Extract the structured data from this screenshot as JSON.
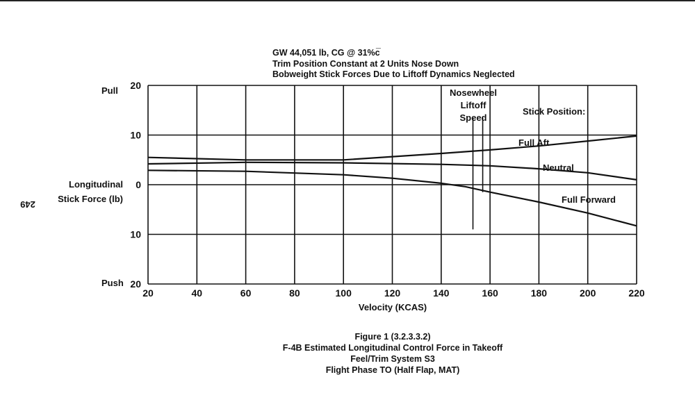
{
  "chart_data": {
    "type": "line",
    "header_lines": [
      "GW 44,051 lb, CG @ 31%c̅",
      "Trim Position Constant at 2 Units Nose Down",
      "Bobweight Stick Forces Due to Liftoff Dynamics Neglected"
    ],
    "xlabel": "Velocity (KCAS)",
    "ylabel": [
      "Longitudinal",
      "Stick Force (lb)"
    ],
    "xlim": [
      20,
      220
    ],
    "ylim": [
      -20,
      20
    ],
    "x_ticks": [
      20,
      40,
      60,
      80,
      100,
      120,
      140,
      160,
      180,
      200,
      220
    ],
    "y_ticks": [
      {
        "value": 20,
        "label": "20"
      },
      {
        "value": 10,
        "label": "10"
      },
      {
        "value": 0,
        "label": "0"
      },
      {
        "value": -10,
        "label": "10"
      },
      {
        "value": -20,
        "label": "20"
      }
    ],
    "y_direction_labels": {
      "top": "Pull",
      "bottom": "Push"
    },
    "grid": true,
    "legend_title": "Stick Position:",
    "series": [
      {
        "name": "Full Aft",
        "x": [
          20,
          60,
          100,
          140,
          160,
          180,
          200,
          220
        ],
        "y": [
          5.5,
          5.0,
          5.0,
          6.3,
          7.0,
          7.8,
          8.8,
          9.8
        ]
      },
      {
        "name": "Neutral",
        "x": [
          20,
          60,
          100,
          140,
          160,
          180,
          200,
          220
        ],
        "y": [
          4.2,
          4.5,
          4.4,
          4.1,
          3.8,
          3.2,
          2.4,
          1.0
        ]
      },
      {
        "name": "Full Forward",
        "x": [
          20,
          60,
          100,
          120,
          140,
          150,
          160,
          180,
          200,
          220
        ],
        "y": [
          2.9,
          2.7,
          2.0,
          1.3,
          0.3,
          -0.4,
          -1.5,
          -3.5,
          -5.7,
          -8.3
        ]
      }
    ],
    "annotations": [
      {
        "text": [
          "Nosewheel",
          "Liftoff",
          "Speed"
        ],
        "x_range": [
          153,
          157
        ]
      }
    ],
    "caption_lines": [
      "Figure 1 (3.2.3.3.2)",
      "F-4B Estimated Longitudinal Control Force in Takeoff",
      "Feel/Trim System S3",
      "Flight Phase TO (Half Flap, MAT)"
    ],
    "page_number": "249"
  }
}
